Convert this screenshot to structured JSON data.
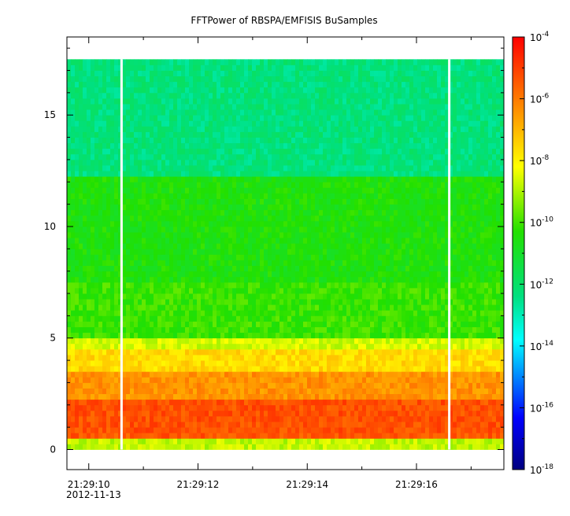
{
  "chart_data": {
    "type": "heatmap",
    "title": "FFTPower of RBSPA/EMFISIS  BuSamples",
    "xlabel": "",
    "ylabel": "",
    "x_ticks": [
      "21:29:10",
      "21:29:12",
      "21:29:14",
      "21:29:16"
    ],
    "x_tick_values": [
      10,
      12,
      14,
      16
    ],
    "x_date_label": "2012-11-13",
    "xlim": [
      9.6,
      17.6
    ],
    "y_ticks": [
      "0",
      "5",
      "10",
      "15"
    ],
    "y_tick_values": [
      0,
      5,
      10,
      15
    ],
    "ylim": [
      -0.9,
      18.5
    ],
    "data_extent": {
      "time": [
        9.6,
        17.6
      ],
      "frequency": [
        0,
        17.5
      ]
    },
    "gaps": [
      10.6,
      16.6
    ],
    "colorbar": {
      "scale": "log",
      "range": [
        1e-18,
        0.0001
      ],
      "tick_values": [
        -4,
        -6,
        -8,
        -10,
        -12,
        -14,
        -16,
        -18
      ],
      "tick_base": "10"
    },
    "spectrum_profile": [
      {
        "freq_range": [
          0,
          0.45
        ],
        "log_power": -8.8
      },
      {
        "freq_range": [
          0.45,
          0.75
        ],
        "log_power": -5.4
      },
      {
        "freq_range": [
          0.75,
          2.2
        ],
        "log_power": -5.3
      },
      {
        "freq_range": [
          2.2,
          3.6
        ],
        "log_power": -6.4
      },
      {
        "freq_range": [
          3.6,
          4.5
        ],
        "log_power": -7.6
      },
      {
        "freq_range": [
          4.5,
          5.0
        ],
        "log_power": -8.6
      },
      {
        "freq_range": [
          5.0,
          7.5
        ],
        "log_power": -10.1
      },
      {
        "freq_range": [
          7.5,
          12.2
        ],
        "log_power": -10.5
      },
      {
        "freq_range": [
          12.2,
          17.5
        ],
        "log_power": -12.3
      }
    ]
  }
}
